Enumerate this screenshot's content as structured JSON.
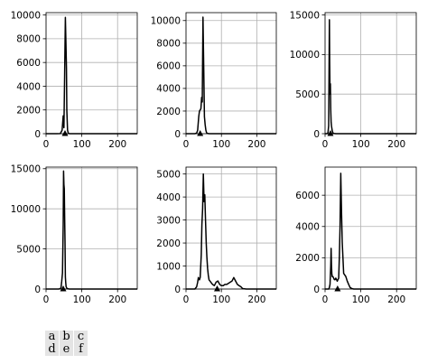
{
  "chart_data": [
    {
      "type": "line",
      "xlim": [
        0,
        255
      ],
      "ylim": [
        0,
        10200
      ],
      "xticks": [
        0,
        100,
        200
      ],
      "yticks": [
        0,
        2000,
        4000,
        6000,
        8000,
        10000
      ],
      "grid": true,
      "x": [
        0,
        30,
        40,
        45,
        48,
        50,
        52,
        54,
        56,
        57,
        58,
        60,
        62,
        64,
        66,
        70,
        100,
        255
      ],
      "values": [
        0,
        0,
        10,
        300,
        1500,
        500,
        5000,
        9800,
        7000,
        5500,
        2000,
        300,
        50,
        20,
        0,
        0,
        0,
        0
      ],
      "marker_x": 53
    },
    {
      "type": "line",
      "xlim": [
        0,
        255
      ],
      "ylim": [
        0,
        10700
      ],
      "xticks": [
        0,
        100,
        200
      ],
      "yticks": [
        0,
        2000,
        4000,
        6000,
        8000,
        10000
      ],
      "grid": true,
      "x": [
        0,
        25,
        30,
        33,
        36,
        38,
        40,
        42,
        44,
        46,
        48,
        50,
        52,
        54,
        56,
        58,
        60,
        65,
        100,
        255
      ],
      "values": [
        0,
        0,
        50,
        300,
        1500,
        2000,
        2100,
        2200,
        3200,
        2800,
        10300,
        6000,
        1500,
        800,
        300,
        100,
        30,
        0,
        0,
        0
      ],
      "marker_x": 40
    },
    {
      "type": "line",
      "xlim": [
        0,
        255
      ],
      "ylim": [
        0,
        15300
      ],
      "xticks": [
        0,
        100,
        200
      ],
      "yticks": [
        0,
        5000,
        10000,
        15000
      ],
      "grid": true,
      "x": [
        0,
        5,
        8,
        10,
        12,
        13,
        14,
        15,
        16,
        17,
        18,
        20,
        22,
        25,
        30,
        100,
        255
      ],
      "values": [
        0,
        0,
        100,
        1000,
        14400,
        9000,
        5000,
        6300,
        3000,
        1500,
        1000,
        400,
        100,
        20,
        0,
        0,
        0
      ],
      "marker_x": 15
    },
    {
      "type": "line",
      "xlim": [
        0,
        255
      ],
      "ylim": [
        0,
        15200
      ],
      "xticks": [
        0,
        100,
        200
      ],
      "yticks": [
        0,
        5000,
        10000,
        15000
      ],
      "grid": true,
      "x": [
        0,
        35,
        40,
        42,
        44,
        46,
        48,
        49,
        50,
        51,
        52,
        53,
        54,
        55,
        56,
        57,
        58,
        60,
        65,
        100,
        255
      ],
      "values": [
        0,
        0,
        50,
        200,
        1000,
        2000,
        8000,
        14700,
        13000,
        12500,
        9000,
        6000,
        1500,
        800,
        300,
        200,
        100,
        50,
        0,
        0,
        0
      ],
      "marker_x": 48
    },
    {
      "type": "line",
      "xlim": [
        0,
        255
      ],
      "ylim": [
        0,
        5300
      ],
      "xticks": [
        0,
        100,
        200
      ],
      "yticks": [
        0,
        1000,
        2000,
        3000,
        4000,
        5000
      ],
      "grid": true,
      "x": [
        0,
        25,
        30,
        33,
        35,
        38,
        40,
        43,
        45,
        47,
        49,
        51,
        53,
        55,
        57,
        59,
        61,
        63,
        65,
        70,
        75,
        80,
        85,
        90,
        95,
        100,
        105,
        110,
        115,
        120,
        125,
        130,
        135,
        140,
        145,
        150,
        155,
        160,
        170,
        180,
        255
      ],
      "values": [
        0,
        0,
        100,
        300,
        500,
        400,
        500,
        1500,
        2800,
        3500,
        5000,
        3800,
        4100,
        3000,
        2000,
        1400,
        900,
        600,
        400,
        300,
        200,
        150,
        300,
        350,
        200,
        150,
        150,
        200,
        200,
        250,
        300,
        350,
        500,
        350,
        200,
        150,
        100,
        20,
        0,
        0,
        0
      ],
      "marker_x": 88
    },
    {
      "type": "line",
      "xlim": [
        0,
        255
      ],
      "ylim": [
        0,
        7800
      ],
      "xticks": [
        0,
        100,
        200
      ],
      "yticks": [
        0,
        2000,
        4000,
        6000
      ],
      "grid": true,
      "x": [
        0,
        10,
        12,
        14,
        16,
        17,
        18,
        19,
        20,
        22,
        24,
        26,
        28,
        30,
        32,
        34,
        36,
        38,
        40,
        42,
        44,
        46,
        48,
        50,
        52,
        55,
        58,
        62,
        66,
        70,
        75,
        80,
        100,
        255
      ],
      "values": [
        0,
        0,
        100,
        300,
        1500,
        2600,
        1500,
        1000,
        800,
        800,
        700,
        600,
        600,
        700,
        600,
        500,
        600,
        700,
        2000,
        4000,
        7400,
        5000,
        3000,
        2000,
        1000,
        900,
        800,
        500,
        300,
        100,
        30,
        0,
        0,
        0
      ],
      "marker_x": 35
    }
  ],
  "panel_labels": [
    [
      "a",
      "b",
      "c"
    ],
    [
      "d",
      "e",
      "f"
    ]
  ]
}
